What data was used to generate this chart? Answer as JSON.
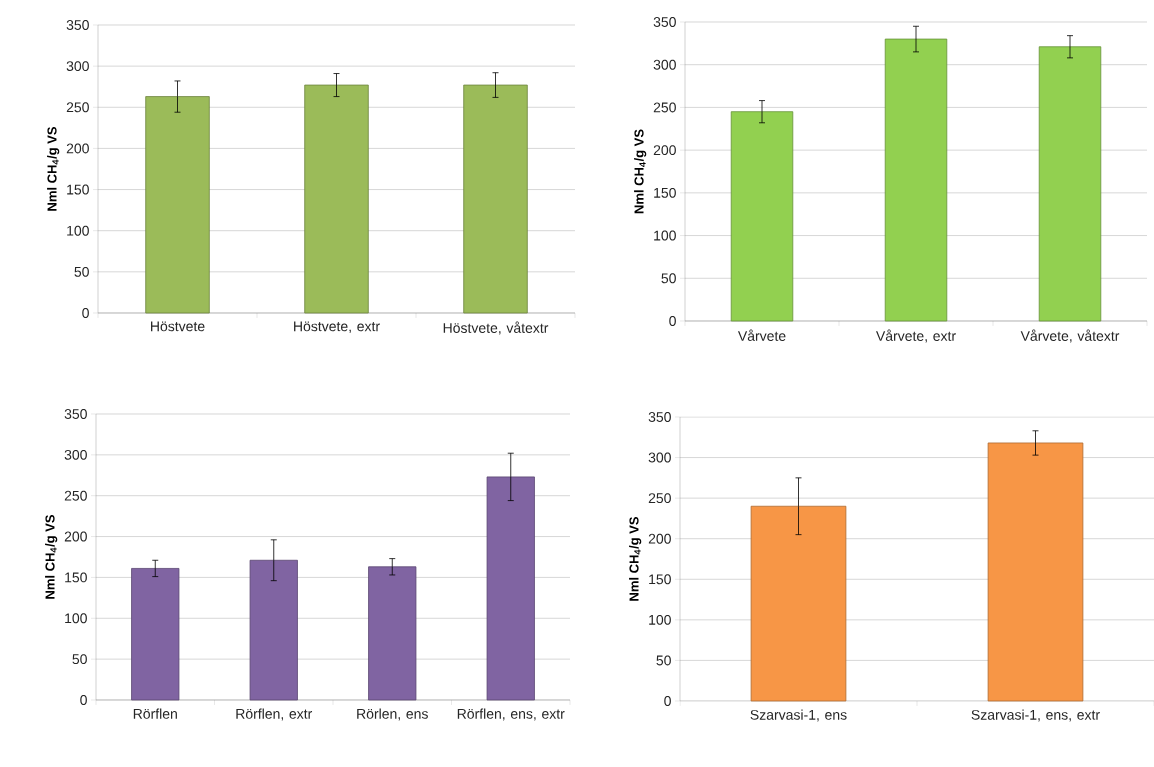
{
  "chart_data": [
    {
      "type": "bar",
      "categories": [
        "Höstvete",
        "Höstvete, extr",
        "Höstvete, våtextr"
      ],
      "values": [
        263,
        277,
        277
      ],
      "errors": [
        19,
        14,
        15
      ],
      "color": "#9bbb59",
      "ylabel": "Nml CH$_{4}$/g VS",
      "ylim": [
        0,
        350
      ],
      "yticks": [
        0,
        50,
        100,
        150,
        200,
        250,
        300,
        350
      ],
      "grid": "y"
    },
    {
      "type": "bar",
      "categories": [
        "Vårvete",
        "Vårvete, extr",
        "Vårvete, våtextr"
      ],
      "values": [
        245,
        330,
        321
      ],
      "errors": [
        13,
        15,
        13
      ],
      "color": "#92d050",
      "ylabel": "Nml CH$_{4}$/g VS",
      "ylim": [
        0,
        350
      ],
      "yticks": [
        0,
        50,
        100,
        150,
        200,
        250,
        300,
        350
      ],
      "grid": "y"
    },
    {
      "type": "bar",
      "categories": [
        "Rörflen",
        "Rörflen, extr",
        "Rörlen, ens",
        "Rörflen, ens, extr"
      ],
      "values": [
        161,
        171,
        163,
        273
      ],
      "errors": [
        10,
        25,
        10,
        29
      ],
      "color": "#8064a2",
      "ylabel": "Nml CH$_{4}$/g VS",
      "ylim": [
        0,
        350
      ],
      "yticks": [
        0,
        50,
        100,
        150,
        200,
        250,
        300,
        350
      ],
      "grid": "y"
    },
    {
      "type": "bar",
      "categories": [
        "Szarvasi-1, ens",
        "Szarvasi-1, ens, extr"
      ],
      "values": [
        240,
        318
      ],
      "errors": [
        35,
        15
      ],
      "color": "#f79646",
      "ylabel": "Nml CH$_{4}$/g VS",
      "ylim": [
        0,
        350
      ],
      "yticks": [
        0,
        50,
        100,
        150,
        200,
        250,
        300,
        350
      ],
      "grid": "y"
    }
  ]
}
